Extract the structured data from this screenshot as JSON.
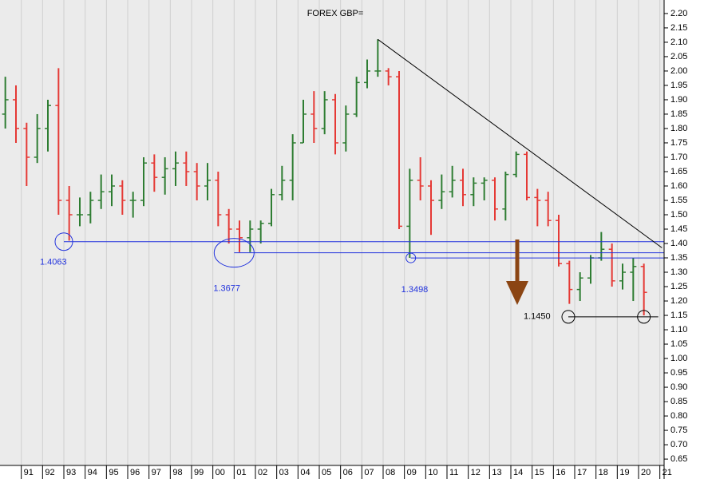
{
  "chart_data": {
    "type": "ohlc",
    "title": "FOREX GBP=",
    "x": [
      1990.25,
      1990.75,
      1991.25,
      1991.75,
      1992.25,
      1992.75,
      1993.25,
      1993.75,
      1994.25,
      1994.75,
      1995.25,
      1995.75,
      1996.25,
      1996.75,
      1997.25,
      1997.75,
      1998.25,
      1998.75,
      1999.25,
      1999.75,
      2000.25,
      2000.75,
      2001.25,
      2001.75,
      2002.25,
      2002.75,
      2003.25,
      2003.75,
      2004.25,
      2004.75,
      2005.25,
      2005.75,
      2006.25,
      2006.75,
      2007.25,
      2007.75,
      2008.25,
      2008.75,
      2009.25,
      2009.75,
      2010.25,
      2010.75,
      2011.25,
      2011.75,
      2012.25,
      2012.75,
      2013.25,
      2013.75,
      2014.25,
      2014.75,
      2015.25,
      2015.75,
      2016.25,
      2016.75,
      2017.25,
      2017.75,
      2018.25,
      2018.75,
      2019.25,
      2019.75,
      2020.25
    ],
    "open": [
      1.85,
      1.9,
      1.8,
      1.7,
      1.8,
      1.88,
      1.55,
      1.5,
      1.5,
      1.55,
      1.58,
      1.6,
      1.55,
      1.55,
      1.68,
      1.63,
      1.66,
      1.68,
      1.65,
      1.6,
      1.62,
      1.5,
      1.45,
      1.42,
      1.45,
      1.47,
      1.57,
      1.62,
      1.75,
      1.85,
      1.8,
      1.9,
      1.75,
      1.85,
      1.96,
      2.0,
      2.0,
      1.98,
      1.46,
      1.62,
      1.6,
      1.55,
      1.58,
      1.62,
      1.57,
      1.61,
      1.62,
      1.52,
      1.64,
      1.71,
      1.56,
      1.55,
      1.48,
      1.33,
      1.24,
      1.28,
      1.35,
      1.38,
      1.27,
      1.3,
      1.32
    ],
    "high": [
      1.98,
      1.95,
      1.82,
      1.85,
      1.9,
      2.01,
      1.6,
      1.56,
      1.58,
      1.64,
      1.64,
      1.62,
      1.58,
      1.7,
      1.71,
      1.7,
      1.72,
      1.72,
      1.68,
      1.68,
      1.65,
      1.52,
      1.48,
      1.48,
      1.48,
      1.59,
      1.67,
      1.78,
      1.9,
      1.93,
      1.93,
      1.92,
      1.88,
      1.98,
      2.04,
      2.11,
      2.01,
      2.0,
      1.66,
      1.7,
      1.62,
      1.64,
      1.67,
      1.66,
      1.63,
      1.63,
      1.63,
      1.65,
      1.72,
      1.72,
      1.59,
      1.58,
      1.5,
      1.34,
      1.3,
      1.36,
      1.44,
      1.4,
      1.33,
      1.35,
      1.33
    ],
    "low": [
      1.8,
      1.75,
      1.6,
      1.68,
      1.72,
      1.5,
      1.41,
      1.46,
      1.47,
      1.52,
      1.53,
      1.5,
      1.49,
      1.53,
      1.58,
      1.57,
      1.6,
      1.6,
      1.55,
      1.55,
      1.46,
      1.4,
      1.37,
      1.37,
      1.4,
      1.46,
      1.55,
      1.55,
      1.75,
      1.75,
      1.78,
      1.71,
      1.72,
      1.84,
      1.94,
      1.98,
      1.95,
      1.45,
      1.35,
      1.55,
      1.43,
      1.52,
      1.56,
      1.53,
      1.53,
      1.55,
      1.48,
      1.48,
      1.63,
      1.55,
      1.46,
      1.46,
      1.32,
      1.19,
      1.2,
      1.26,
      1.34,
      1.25,
      1.24,
      1.2,
      1.15
    ],
    "close": [
      1.9,
      1.8,
      1.7,
      1.8,
      1.88,
      1.55,
      1.5,
      1.5,
      1.55,
      1.58,
      1.6,
      1.55,
      1.55,
      1.68,
      1.63,
      1.66,
      1.68,
      1.65,
      1.6,
      1.62,
      1.5,
      1.45,
      1.42,
      1.45,
      1.47,
      1.57,
      1.62,
      1.75,
      1.85,
      1.8,
      1.9,
      1.75,
      1.85,
      1.96,
      2.0,
      2.0,
      1.98,
      1.46,
      1.62,
      1.6,
      1.55,
      1.58,
      1.62,
      1.57,
      1.61,
      1.62,
      1.52,
      1.64,
      1.71,
      1.56,
      1.55,
      1.48,
      1.33,
      1.24,
      1.28,
      1.35,
      1.38,
      1.27,
      1.3,
      1.32,
      1.23
    ],
    "up_color": "#2e7d32",
    "down_color": "#e53935",
    "xlim": [
      1990,
      2021.2
    ],
    "xticks": [
      {
        "value": 1991,
        "label": "91"
      },
      {
        "value": 1992,
        "label": "92"
      },
      {
        "value": 1993,
        "label": "93"
      },
      {
        "value": 1994,
        "label": "94"
      },
      {
        "value": 1995,
        "label": "95"
      },
      {
        "value": 1996,
        "label": "96"
      },
      {
        "value": 1997,
        "label": "97"
      },
      {
        "value": 1998,
        "label": "98"
      },
      {
        "value": 1999,
        "label": "99"
      },
      {
        "value": 2000,
        "label": "00"
      },
      {
        "value": 2001,
        "label": "01"
      },
      {
        "value": 2002,
        "label": "02"
      },
      {
        "value": 2003,
        "label": "03"
      },
      {
        "value": 2004,
        "label": "04"
      },
      {
        "value": 2005,
        "label": "05"
      },
      {
        "value": 2006,
        "label": "06"
      },
      {
        "value": 2007,
        "label": "07"
      },
      {
        "value": 2008,
        "label": "08"
      },
      {
        "value": 2009,
        "label": "09"
      },
      {
        "value": 2010,
        "label": "10"
      },
      {
        "value": 2011,
        "label": "11"
      },
      {
        "value": 2012,
        "label": "12"
      },
      {
        "value": 2013,
        "label": "13"
      },
      {
        "value": 2014,
        "label": "14"
      },
      {
        "value": 2015,
        "label": "15"
      },
      {
        "value": 2016,
        "label": "16"
      },
      {
        "value": 2017,
        "label": "17"
      },
      {
        "value": 2018,
        "label": "18"
      },
      {
        "value": 2019,
        "label": "19"
      },
      {
        "value": 2020,
        "label": "20"
      },
      {
        "value": 2021,
        "label": "21"
      }
    ],
    "ylim": [
      0.628,
      2.247
    ],
    "yticks": [
      {
        "value": 2.2,
        "label": "2.20"
      },
      {
        "value": 2.15,
        "label": "2.15"
      },
      {
        "value": 2.1,
        "label": "2.10"
      },
      {
        "value": 2.05,
        "label": "2.05"
      },
      {
        "value": 2.0,
        "label": "2.00"
      },
      {
        "value": 1.95,
        "label": "1.95"
      },
      {
        "value": 1.9,
        "label": "1.90"
      },
      {
        "value": 1.85,
        "label": "1.85"
      },
      {
        "value": 1.8,
        "label": "1.80"
      },
      {
        "value": 1.75,
        "label": "1.75"
      },
      {
        "value": 1.7,
        "label": "1.70"
      },
      {
        "value": 1.65,
        "label": "1.65"
      },
      {
        "value": 1.6,
        "label": "1.60"
      },
      {
        "value": 1.55,
        "label": "1.55"
      },
      {
        "value": 1.5,
        "label": "1.50"
      },
      {
        "value": 1.45,
        "label": "1.45"
      },
      {
        "value": 1.4,
        "label": "1.40"
      },
      {
        "value": 1.35,
        "label": "1.35"
      },
      {
        "value": 1.3,
        "label": "1.30"
      },
      {
        "value": 1.25,
        "label": "1.25"
      },
      {
        "value": 1.2,
        "label": "1.20"
      },
      {
        "value": 1.15,
        "label": "1.15"
      },
      {
        "value": 1.1,
        "label": "1.10"
      },
      {
        "value": 1.05,
        "label": "1.05"
      },
      {
        "value": 1.0,
        "label": "1.00"
      },
      {
        "value": 0.95,
        "label": "0.95"
      },
      {
        "value": 0.9,
        "label": "0.90"
      },
      {
        "value": 0.85,
        "label": "0.85"
      },
      {
        "value": 0.8,
        "label": "0.80"
      },
      {
        "value": 0.75,
        "label": "0.75"
      },
      {
        "value": 0.7,
        "label": "0.70"
      },
      {
        "value": 0.65,
        "label": "0.65"
      }
    ],
    "grid": true,
    "levels": [
      {
        "value": 1.4063,
        "label": "1.4063",
        "x": [
          1993.0
        ],
        "color": "#2233dd"
      },
      {
        "value": 1.3677,
        "label": "1.3677",
        "x": [
          2001.0
        ],
        "color": "#2233dd"
      },
      {
        "value": 1.3498,
        "label": "1.3498",
        "x": [
          2009.3
        ],
        "color": "#2233dd"
      },
      {
        "value": 1.145,
        "label": "1.1450",
        "x": [
          2016.7,
          2020.25
        ],
        "color": "#000000"
      }
    ],
    "trendline": {
      "x": [
        2007.75,
        2021.1
      ],
      "y": [
        2.11,
        1.385
      ],
      "color": "#000000"
    }
  }
}
